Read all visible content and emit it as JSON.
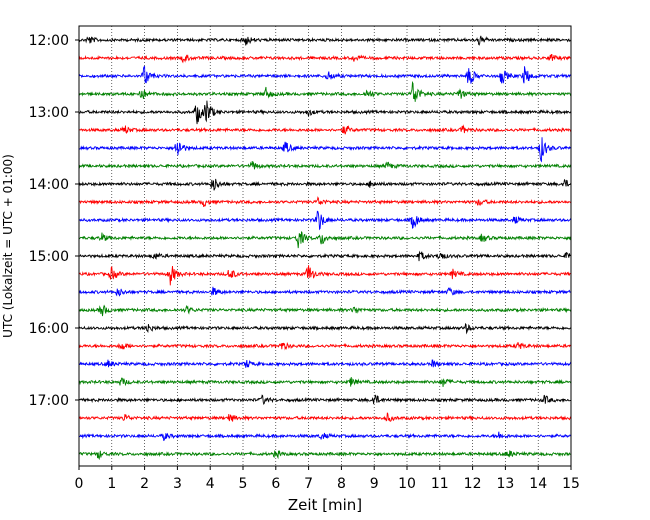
{
  "chart_data": {
    "type": "line",
    "title": "",
    "xlabel": "Zeit  [min]",
    "ylabel": "UTC (Lokalzeit = UTC + 01:00)",
    "xlim": [
      0,
      15
    ],
    "x_ticks": [
      "0",
      "1",
      "2",
      "3",
      "4",
      "5",
      "6",
      "7",
      "8",
      "9",
      "10",
      "11",
      "12",
      "13",
      "14",
      "15"
    ],
    "y_ticks": [
      "12:00",
      "13:00",
      "14:00",
      "15:00",
      "16:00",
      "17:00"
    ],
    "grid": "vertical dotted, 1 min spacing",
    "trace_minutes": 15,
    "trace_colors": [
      "#000000",
      "#ff0000",
      "#0000ff",
      "#008000"
    ],
    "traces": [
      {
        "start": "12:00",
        "events": [
          [
            0.3,
            0.6
          ],
          [
            5.1,
            0.7
          ],
          [
            12.2,
            0.7
          ]
        ]
      },
      {
        "start": "12:15",
        "events": [
          [
            3.2,
            0.6
          ],
          [
            8.4,
            0.5
          ],
          [
            14.4,
            0.5
          ]
        ]
      },
      {
        "start": "12:30",
        "events": [
          [
            2.0,
            1.6
          ],
          [
            7.6,
            0.7
          ],
          [
            11.9,
            1.5
          ],
          [
            12.9,
            1.2
          ],
          [
            13.6,
            1.4
          ]
        ]
      },
      {
        "start": "12:45",
        "events": [
          [
            1.9,
            0.9
          ],
          [
            5.7,
            0.8
          ],
          [
            8.8,
            0.6
          ],
          [
            10.2,
            2.2
          ],
          [
            11.6,
            0.8
          ]
        ]
      },
      {
        "start": "13:00",
        "events": [
          [
            3.6,
            1.7
          ],
          [
            3.9,
            1.8
          ],
          [
            7.0,
            0.5
          ]
        ]
      },
      {
        "start": "13:15",
        "events": [
          [
            1.4,
            0.6
          ],
          [
            8.1,
            0.7
          ],
          [
            11.7,
            0.5
          ]
        ]
      },
      {
        "start": "13:30",
        "events": [
          [
            3.0,
            1.6
          ],
          [
            6.3,
            0.9
          ],
          [
            14.1,
            1.9
          ]
        ]
      },
      {
        "start": "13:45",
        "events": [
          [
            5.3,
            0.6
          ],
          [
            9.4,
            0.5
          ]
        ]
      },
      {
        "start": "14:00",
        "events": [
          [
            4.1,
            1.1
          ],
          [
            8.9,
            0.5
          ],
          [
            14.8,
            0.6
          ]
        ]
      },
      {
        "start": "14:15",
        "events": [
          [
            3.8,
            0.6
          ],
          [
            7.3,
            0.6
          ],
          [
            12.2,
            0.5
          ]
        ]
      },
      {
        "start": "14:30",
        "events": [
          [
            7.3,
            1.8
          ],
          [
            10.2,
            1.3
          ],
          [
            13.3,
            0.5
          ]
        ]
      },
      {
        "start": "14:45",
        "events": [
          [
            0.7,
            0.6
          ],
          [
            6.7,
            1.5
          ],
          [
            7.4,
            1.0
          ],
          [
            12.3,
            0.6
          ]
        ]
      },
      {
        "start": "15:00",
        "events": [
          [
            2.3,
            0.5
          ],
          [
            10.4,
            0.7
          ],
          [
            11.0,
            0.7
          ],
          [
            14.9,
            0.6
          ]
        ]
      },
      {
        "start": "15:15",
        "events": [
          [
            1.0,
            0.9
          ],
          [
            2.8,
            1.6
          ],
          [
            4.6,
            0.9
          ],
          [
            7.0,
            1.4
          ],
          [
            11.4,
            0.6
          ]
        ]
      },
      {
        "start": "15:30",
        "events": [
          [
            1.2,
            0.6
          ],
          [
            4.1,
            0.6
          ],
          [
            11.3,
            0.6
          ]
        ]
      },
      {
        "start": "15:45",
        "events": [
          [
            0.7,
            0.9
          ],
          [
            3.3,
            0.5
          ],
          [
            8.4,
            0.5
          ]
        ]
      },
      {
        "start": "16:00",
        "events": [
          [
            2.1,
            0.6
          ],
          [
            11.8,
            0.6
          ]
        ]
      },
      {
        "start": "16:15",
        "events": [
          [
            1.3,
            0.6
          ],
          [
            6.2,
            0.6
          ],
          [
            13.4,
            0.5
          ]
        ]
      },
      {
        "start": "16:30",
        "events": [
          [
            0.9,
            0.5
          ],
          [
            5.1,
            0.6
          ],
          [
            10.8,
            0.5
          ]
        ]
      },
      {
        "start": "16:45",
        "events": [
          [
            1.3,
            0.6
          ],
          [
            8.3,
            0.6
          ],
          [
            11.1,
            0.6
          ]
        ]
      },
      {
        "start": "17:00",
        "events": [
          [
            5.6,
            0.6
          ],
          [
            9.0,
            0.9
          ],
          [
            14.2,
            0.6
          ]
        ]
      },
      {
        "start": "17:15",
        "events": [
          [
            1.4,
            0.5
          ],
          [
            4.6,
            0.6
          ],
          [
            9.4,
            0.6
          ]
        ]
      },
      {
        "start": "17:30",
        "events": [
          [
            2.6,
            0.5
          ],
          [
            7.4,
            0.5
          ],
          [
            12.8,
            0.5
          ]
        ]
      },
      {
        "start": "17:45",
        "events": [
          [
            0.6,
            0.6
          ],
          [
            6.0,
            0.5
          ],
          [
            13.1,
            0.5
          ]
        ]
      }
    ]
  }
}
